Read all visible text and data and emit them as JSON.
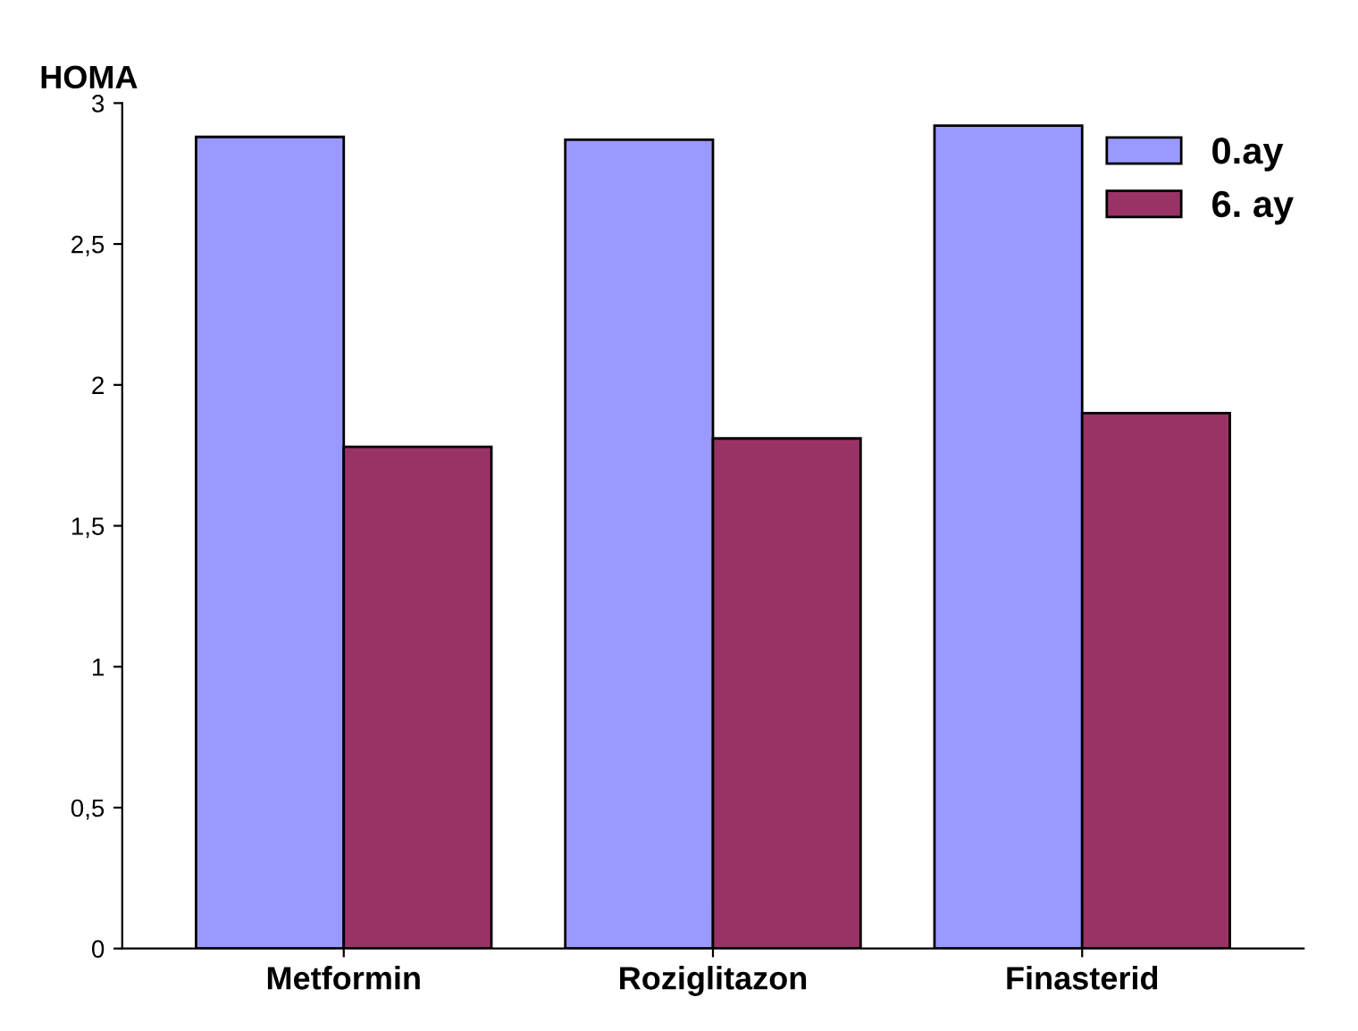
{
  "chart_data": {
    "type": "bar",
    "title": "HOMA",
    "categories": [
      "Metformin",
      "Roziglitazon",
      "Finasterid"
    ],
    "series": [
      {
        "name": "0.ay",
        "color": "#9999ff",
        "values": [
          2.88,
          2.87,
          2.92
        ]
      },
      {
        "name": "6. ay",
        "color": "#993366",
        "values": [
          1.78,
          1.81,
          1.9
        ]
      }
    ],
    "ylim": [
      0,
      3
    ],
    "yticks": [
      0,
      {
        "value": 0.5,
        "label": "0,5"
      },
      1,
      {
        "value": 1.5,
        "label": "1,5"
      },
      2,
      {
        "value": 2.5,
        "label": "2,5"
      },
      3
    ],
    "grid": false,
    "legend": "top right"
  }
}
